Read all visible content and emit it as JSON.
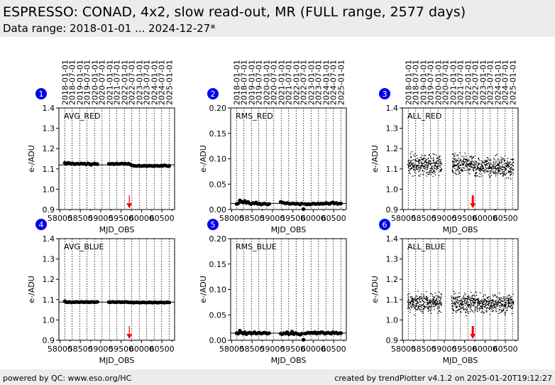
{
  "header": {
    "title": "ESPRESSO: CONAD, 4x2, slow read-out, MR (FULL range, 2577 days)",
    "subtitle": "Data range: 2018-01-01 ... 2024-12-27*"
  },
  "footer": {
    "left": "powered by QC: www.eso.org/HC",
    "right": "created by trendPlotter v4.1.2 on 2025-01-20T19:12:27"
  },
  "colors": {
    "badge": "#0000ee",
    "arrow": "#ff0000",
    "points": "#000000"
  },
  "chart_data": {
    "type": "scatter",
    "xlabel": "MJD_OBS",
    "ylabel": "e-/ADU",
    "xlim": [
      57975,
      60810
    ],
    "xticks": [
      58000,
      58500,
      59000,
      59500,
      60000,
      60500
    ],
    "date_lines": [
      {
        "label": "2018-01-01",
        "mjd": 58119
      },
      {
        "label": "2018-07-01",
        "mjd": 58300
      },
      {
        "label": "2019-01-01",
        "mjd": 58484
      },
      {
        "label": "2019-07-01",
        "mjd": 58665
      },
      {
        "label": "2020-01-01",
        "mjd": 58849
      },
      {
        "label": "2020-07-01",
        "mjd": 59031
      },
      {
        "label": "2021-01-01",
        "mjd": 59215
      },
      {
        "label": "2021-07-01",
        "mjd": 59396
      },
      {
        "label": "2022-01-01",
        "mjd": 59580
      },
      {
        "label": "2022-07-01",
        "mjd": 59761
      },
      {
        "label": "2023-01-01",
        "mjd": 59945
      },
      {
        "label": "2023-07-01",
        "mjd": 60126
      },
      {
        "label": "2024-01-01",
        "mjd": 60310
      },
      {
        "label": "2024-07-01",
        "mjd": 60492
      },
      {
        "label": "2025-01-01",
        "mjd": 60676
      }
    ],
    "x": [
      58120,
      58160,
      58200,
      58240,
      58280,
      58320,
      58360,
      58400,
      58440,
      58480,
      58520,
      58560,
      58600,
      58640,
      58680,
      58720,
      58760,
      58800,
      58840,
      58880,
      58920,
      59200,
      59240,
      59280,
      59320,
      59360,
      59400,
      59440,
      59480,
      59520,
      59560,
      59600,
      59640,
      59680,
      59720,
      59760,
      59800,
      59840,
      59880,
      59920,
      59960,
      60000,
      60040,
      60080,
      60120,
      60160,
      60200,
      60240,
      60280,
      60320,
      60360,
      60400,
      60440,
      60480,
      60520,
      60560,
      60600,
      60640,
      60680
    ],
    "panels": [
      {
        "num": "1",
        "label": "AVG_RED",
        "ylim": [
          0.9,
          1.4
        ],
        "yticks": [
          "0.9",
          "1.0",
          "1.1",
          "1.2",
          "1.3",
          "1.4"
        ],
        "ref": 1.12,
        "arrow_mjd": 59700,
        "arrow_from": 0.97,
        "arrow_to": 0.91,
        "style": "big",
        "y": [
          1.13,
          1.125,
          1.13,
          1.128,
          1.125,
          1.127,
          1.123,
          1.125,
          1.126,
          1.124,
          1.127,
          1.125,
          1.126,
          1.122,
          1.127,
          1.125,
          1.12,
          1.124,
          1.126,
          1.125,
          1.123,
          1.125,
          1.124,
          1.126,
          1.123,
          1.125,
          1.126,
          1.124,
          1.125,
          1.127,
          1.125,
          1.126,
          1.124,
          1.126,
          1.122,
          1.118,
          1.116,
          1.115,
          1.114,
          1.116,
          1.115,
          1.114,
          1.115,
          1.116,
          1.114,
          1.115,
          1.116,
          1.115,
          1.114,
          1.115,
          1.116,
          1.115,
          1.114,
          1.116,
          1.115,
          1.118,
          1.116,
          1.114,
          1.115
        ]
      },
      {
        "num": "2",
        "label": "RMS_RED",
        "ylim": [
          0,
          0.2
        ],
        "yticks": [
          "0.00",
          "0.05",
          "0.10",
          "0.15",
          "0.20"
        ],
        "ref": 0.012,
        "style": "big",
        "y": [
          0.011,
          0.012,
          0.018,
          0.016,
          0.014,
          0.017,
          0.013,
          0.015,
          0.012,
          0.011,
          0.013,
          0.012,
          0.014,
          0.011,
          0.012,
          0.01,
          0.011,
          0.012,
          0.011,
          0.01,
          0.011,
          0.015,
          0.014,
          0.013,
          0.012,
          0.013,
          0.012,
          0.011,
          0.012,
          0.012,
          0.011,
          0.012,
          0.011,
          0.01,
          0.012,
          0.001,
          0.011,
          0.01,
          0.011,
          0.01,
          0.011,
          0.012,
          0.011,
          0.011,
          0.012,
          0.011,
          0.012,
          0.011,
          0.012,
          0.013,
          0.012,
          0.011,
          0.013,
          0.014,
          0.012,
          0.013,
          0.011,
          0.012,
          0.012
        ]
      },
      {
        "num": "3",
        "label": "ALL_RED",
        "ylim": [
          0.9,
          1.4
        ],
        "yticks": [
          "0.9",
          "1.0",
          "1.1",
          "1.2",
          "1.3",
          "1.4"
        ],
        "arrow_mjd": 59700,
        "arrow_from": 0.97,
        "arrow_to": 0.91,
        "style": "dots",
        "center_from": 0,
        "spread": 0.035
      },
      {
        "num": "4",
        "label": "AVG_BLUE",
        "ylim": [
          0.9,
          1.4
        ],
        "yticks": [
          "0.9",
          "1.0",
          "1.1",
          "1.2",
          "1.3",
          "1.4"
        ],
        "ref": 1.088,
        "arrow_mjd": 59700,
        "arrow_from": 0.97,
        "arrow_to": 0.91,
        "style": "big",
        "y": [
          1.092,
          1.088,
          1.087,
          1.089,
          1.086,
          1.088,
          1.087,
          1.089,
          1.088,
          1.087,
          1.089,
          1.088,
          1.087,
          1.089,
          1.088,
          1.087,
          1.088,
          1.089,
          1.087,
          1.088,
          1.089,
          1.088,
          1.087,
          1.089,
          1.088,
          1.087,
          1.088,
          1.089,
          1.087,
          1.088,
          1.087,
          1.089,
          1.088,
          1.087,
          1.086,
          1.087,
          1.085,
          1.086,
          1.087,
          1.086,
          1.085,
          1.086,
          1.087,
          1.086,
          1.085,
          1.086,
          1.087,
          1.086,
          1.085,
          1.087,
          1.086,
          1.085,
          1.086,
          1.087,
          1.086,
          1.085,
          1.086,
          1.087,
          1.086
        ]
      },
      {
        "num": "5",
        "label": "RMS_BLUE",
        "ylim": [
          0,
          0.2
        ],
        "yticks": [
          "0.00",
          "0.05",
          "0.10",
          "0.15",
          "0.20"
        ],
        "ref": 0.014,
        "style": "big",
        "y": [
          0.014,
          0.013,
          0.019,
          0.015,
          0.013,
          0.016,
          0.012,
          0.014,
          0.015,
          0.013,
          0.014,
          0.016,
          0.013,
          0.014,
          0.015,
          0.013,
          0.014,
          0.015,
          0.014,
          0.013,
          0.014,
          0.013,
          0.012,
          0.014,
          0.013,
          0.016,
          0.012,
          0.013,
          0.017,
          0.012,
          0.014,
          0.013,
          0.012,
          0.011,
          0.013,
          0.001,
          0.013,
          0.014,
          0.015,
          0.014,
          0.015,
          0.014,
          0.016,
          0.013,
          0.015,
          0.014,
          0.016,
          0.015,
          0.013,
          0.014,
          0.015,
          0.014,
          0.013,
          0.016,
          0.014,
          0.015,
          0.013,
          0.014,
          0.014
        ]
      },
      {
        "num": "6",
        "label": "ALL_BLUE",
        "ylim": [
          0.9,
          1.4
        ],
        "yticks": [
          "0.9",
          "1.0",
          "1.1",
          "1.2",
          "1.3",
          "1.4"
        ],
        "arrow_mjd": 59700,
        "arrow_from": 0.97,
        "arrow_to": 0.91,
        "style": "dots",
        "center_from": 3,
        "spread": 0.035
      }
    ]
  }
}
